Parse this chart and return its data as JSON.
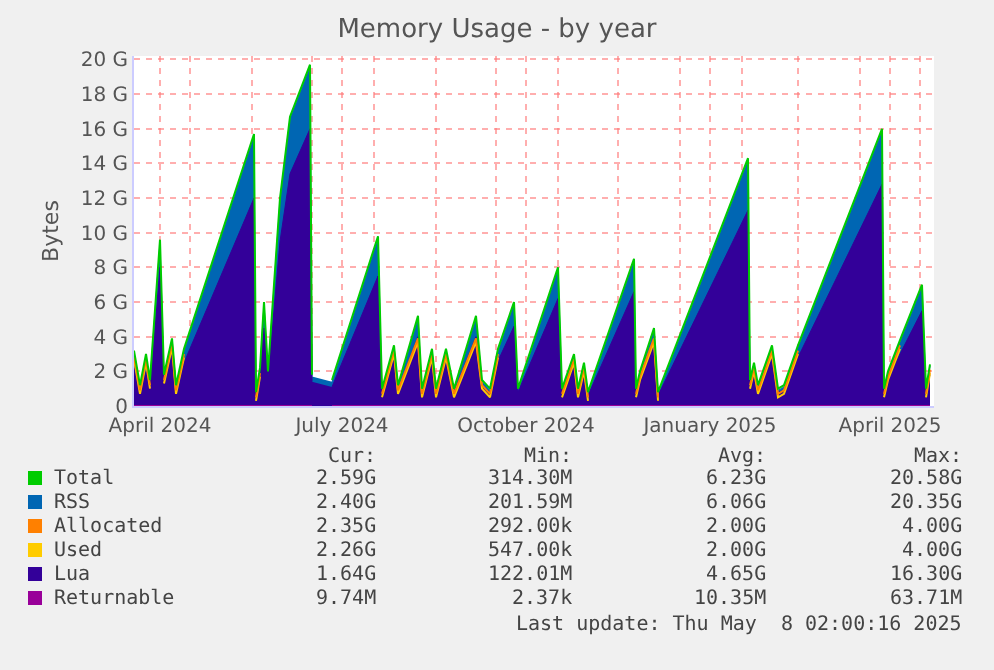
{
  "chart_data": {
    "type": "area",
    "title": "Memory Usage - by year",
    "ylabel": "Bytes",
    "x": [
      "2024-04-03",
      "2024-04-06",
      "2024-04-09",
      "2024-04-11",
      "2024-04-16",
      "2024-04-18",
      "2024-04-22",
      "2024-04-24",
      "2024-04-28",
      "2024-06-02",
      "2024-06-03",
      "2024-06-05",
      "2024-06-07",
      "2024-06-09",
      "2024-06-15",
      "2024-06-20",
      "2024-06-30",
      "2024-07-01",
      "2024-07-02",
      "2024-07-11",
      "2024-08-03",
      "2024-08-05",
      "2024-08-11",
      "2024-08-13",
      "2024-08-23",
      "2024-08-25",
      "2024-08-30",
      "2024-09-01",
      "2024-09-06",
      "2024-09-10",
      "2024-09-21",
      "2024-09-24",
      "2024-09-28",
      "2024-10-02",
      "2024-10-10",
      "2024-10-12",
      "2024-11-01",
      "2024-11-03",
      "2024-11-09",
      "2024-11-11",
      "2024-11-14",
      "2024-11-16",
      "2024-12-09",
      "2024-12-10",
      "2024-12-12",
      "2024-12-19",
      "2024-12-21",
      "2025-02-04",
      "2025-02-05",
      "2025-02-07",
      "2025-02-09",
      "2025-02-16",
      "2025-02-19",
      "2025-02-22",
      "2025-03-01",
      "2025-04-12",
      "2025-04-13",
      "2025-04-15",
      "2025-04-21",
      "2025-05-02",
      "2025-05-04",
      "2025-05-06"
    ],
    "series": [
      {
        "name": "Total",
        "type": "line",
        "color": "#00cc00",
        "values": [
          3.2,
          1.2,
          3.0,
          1.5,
          9.6,
          1.8,
          3.9,
          1.2,
          3.3,
          15.7,
          0.8,
          2.2,
          6.0,
          2.0,
          12.0,
          16.7,
          19.7,
          1.8,
          null,
          1.5,
          9.8,
          1.0,
          3.5,
          1.2,
          5.2,
          1.0,
          3.3,
          1.0,
          3.3,
          1.0,
          5.2,
          1.5,
          1.0,
          3.3,
          6.0,
          1.0,
          8.0,
          1.0,
          3.0,
          1.0,
          2.5,
          0.8,
          8.5,
          1.0,
          2.0,
          4.5,
          0.8,
          14.3,
          1.5,
          2.5,
          1.2,
          3.5,
          1.0,
          1.2,
          3.5,
          16.0,
          1.0,
          2.0,
          3.8,
          7.0,
          1.0,
          2.4
        ]
      },
      {
        "name": "RSS",
        "color": "#0066b3",
        "values": [
          3.1,
          1.1,
          2.9,
          1.4,
          9.5,
          1.7,
          3.8,
          1.1,
          3.2,
          15.6,
          0.7,
          2.1,
          5.9,
          1.9,
          11.9,
          16.6,
          19.6,
          1.7,
          null,
          1.4,
          9.7,
          0.9,
          3.4,
          1.1,
          5.1,
          0.9,
          3.2,
          0.9,
          3.2,
          0.9,
          5.1,
          1.4,
          0.9,
          3.2,
          5.9,
          0.9,
          7.9,
          0.9,
          2.9,
          0.9,
          2.4,
          0.7,
          8.4,
          0.9,
          1.9,
          4.4,
          0.7,
          14.2,
          1.4,
          2.4,
          1.1,
          3.4,
          0.9,
          1.1,
          3.4,
          15.9,
          0.9,
          1.9,
          3.7,
          6.9,
          0.9,
          2.3
        ]
      },
      {
        "name": "Allocated",
        "type": "line",
        "color": "#ff8000",
        "values": [
          2.9,
          0.9,
          2.7,
          1.2,
          null,
          1.5,
          3.6,
          0.9,
          3.0,
          null,
          0.5,
          1.9,
          null,
          null,
          null,
          null,
          null,
          null,
          null,
          null,
          null,
          0.7,
          3.2,
          0.9,
          3.9,
          0.7,
          3.0,
          0.7,
          3.0,
          0.7,
          3.9,
          1.2,
          0.7,
          3.0,
          null,
          null,
          null,
          0.7,
          2.7,
          0.7,
          2.2,
          0.5,
          null,
          0.7,
          1.7,
          3.9,
          0.5,
          null,
          1.2,
          2.2,
          0.9,
          3.2,
          0.7,
          0.9,
          3.2,
          null,
          0.7,
          1.7,
          3.5,
          null,
          0.7,
          2.1
        ]
      },
      {
        "name": "Used",
        "type": "line",
        "color": "#ffcc00",
        "values": [
          2.7,
          0.7,
          2.5,
          1.0,
          null,
          1.3,
          3.4,
          0.7,
          2.8,
          null,
          0.3,
          1.7,
          null,
          null,
          null,
          null,
          null,
          null,
          null,
          null,
          null,
          0.5,
          3.0,
          0.7,
          3.7,
          0.5,
          2.8,
          0.5,
          2.8,
          0.5,
          3.7,
          1.0,
          0.5,
          2.8,
          null,
          null,
          null,
          0.5,
          2.5,
          0.5,
          2.0,
          0.3,
          null,
          0.5,
          1.5,
          3.7,
          0.3,
          null,
          1.0,
          2.0,
          0.7,
          3.0,
          0.5,
          0.7,
          3.0,
          null,
          0.5,
          1.5,
          3.3,
          null,
          0.5,
          1.9
        ]
      },
      {
        "name": "Lua",
        "color": "#330099",
        "values": [
          2.2,
          0.8,
          2.0,
          1.0,
          8.0,
          1.2,
          3.0,
          0.9,
          2.5,
          12.0,
          0.6,
          1.8,
          4.5,
          1.6,
          9.5,
          13.4,
          16.0,
          1.4,
          null,
          1.1,
          7.5,
          0.8,
          2.8,
          0.9,
          4.0,
          0.8,
          2.6,
          0.8,
          2.6,
          0.8,
          4.0,
          1.1,
          0.8,
          2.6,
          4.6,
          0.8,
          6.2,
          0.8,
          2.4,
          0.8,
          2.0,
          0.6,
          6.6,
          0.8,
          1.6,
          3.5,
          0.6,
          11.3,
          1.1,
          2.0,
          0.9,
          2.8,
          0.8,
          0.9,
          2.8,
          12.8,
          0.8,
          1.6,
          3.0,
          5.5,
          0.8,
          1.8
        ]
      },
      {
        "name": "Returnable",
        "type": "line",
        "color": "#990099",
        "values": [
          0,
          0,
          0,
          0,
          0,
          0,
          0,
          0,
          0,
          0,
          0,
          0,
          0,
          0,
          0,
          0,
          0,
          0,
          null,
          0,
          0,
          0,
          0,
          0,
          0,
          0,
          0,
          0,
          0,
          0,
          0,
          0,
          0,
          0,
          0,
          0,
          0,
          0,
          0,
          0,
          0,
          0,
          0,
          0,
          0,
          0,
          0,
          0,
          0,
          0,
          0,
          0,
          0,
          0,
          0,
          0,
          0,
          0,
          0,
          0,
          0,
          0
        ]
      }
    ],
    "xlim": [
      "2024-04-03",
      "2025-05-08"
    ],
    "xticks": [
      {
        "value": "2024-04-16",
        "label": "April 2024"
      },
      {
        "value": "2024-05-01",
        "label": null
      },
      {
        "value": "2024-06-01",
        "label": null
      },
      {
        "value": "2024-07-01",
        "label": null
      },
      {
        "value": "2024-07-16",
        "label": "July 2024"
      },
      {
        "value": "2024-08-01",
        "label": null
      },
      {
        "value": "2024-09-01",
        "label": null
      },
      {
        "value": "2024-10-01",
        "label": null
      },
      {
        "value": "2024-10-16",
        "label": "October 2024"
      },
      {
        "value": "2024-11-01",
        "label": null
      },
      {
        "value": "2024-12-01",
        "label": null
      },
      {
        "value": "2025-01-01",
        "label": null
      },
      {
        "value": "2025-01-16",
        "label": "January 2025"
      },
      {
        "value": "2025-02-01",
        "label": null
      },
      {
        "value": "2025-03-01",
        "label": null
      },
      {
        "value": "2025-04-01",
        "label": null
      },
      {
        "value": "2025-04-16",
        "label": "April 2025"
      },
      {
        "value": "2025-05-01",
        "label": null
      }
    ],
    "ylim": [
      0,
      20.2
    ],
    "yticks": [
      0,
      {
        "value": 2,
        "label": "2 G"
      },
      {
        "value": 4,
        "label": "4 G"
      },
      {
        "value": 6,
        "label": "6 G"
      },
      {
        "value": 8,
        "label": "8 G"
      },
      {
        "value": 10,
        "label": "10 G"
      },
      {
        "value": 12,
        "label": "12 G"
      },
      {
        "value": 14,
        "label": "14 G"
      },
      {
        "value": 16,
        "label": "16 G"
      },
      {
        "value": 18,
        "label": "18 G"
      },
      {
        "value": 20,
        "label": "20 G"
      }
    ],
    "grid": true,
    "legend": "bottom",
    "annotations": [
      "Cur:",
      "Min:",
      "Avg:",
      "Max:",
      "2.59G",
      "314.30M",
      "6.23G",
      "20.58G",
      "2.40G",
      "201.59M",
      "6.06G",
      "20.35G",
      "2.35G",
      "292.00k",
      "2.00G",
      "4.00G",
      "2.26G",
      "547.00k",
      "2.00G",
      "4.00G",
      "1.64G",
      "122.01M",
      "4.65G",
      "16.30G",
      "9.74M",
      "2.37k",
      "10.35M",
      "63.71M",
      "Last update: Thu May  8 02:00:16 2025"
    ]
  }
}
